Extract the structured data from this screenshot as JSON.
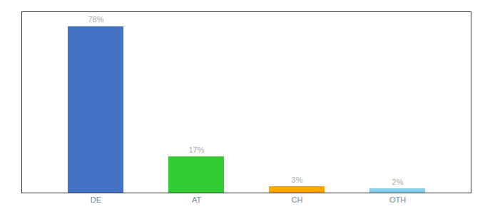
{
  "chart_data": {
    "type": "bar",
    "categories": [
      "DE",
      "AT",
      "CH",
      "OTH"
    ],
    "values": [
      78,
      17,
      3,
      2
    ],
    "value_labels": [
      "78%",
      "17%",
      "3%",
      "2%"
    ],
    "data_labels": true,
    "colors": [
      "#4472C4",
      "#33CC33",
      "#FFA500",
      "#87CEEB"
    ],
    "ylim": [
      0,
      85
    ],
    "yticks": [],
    "tick_labels": "x",
    "grid": false
  }
}
